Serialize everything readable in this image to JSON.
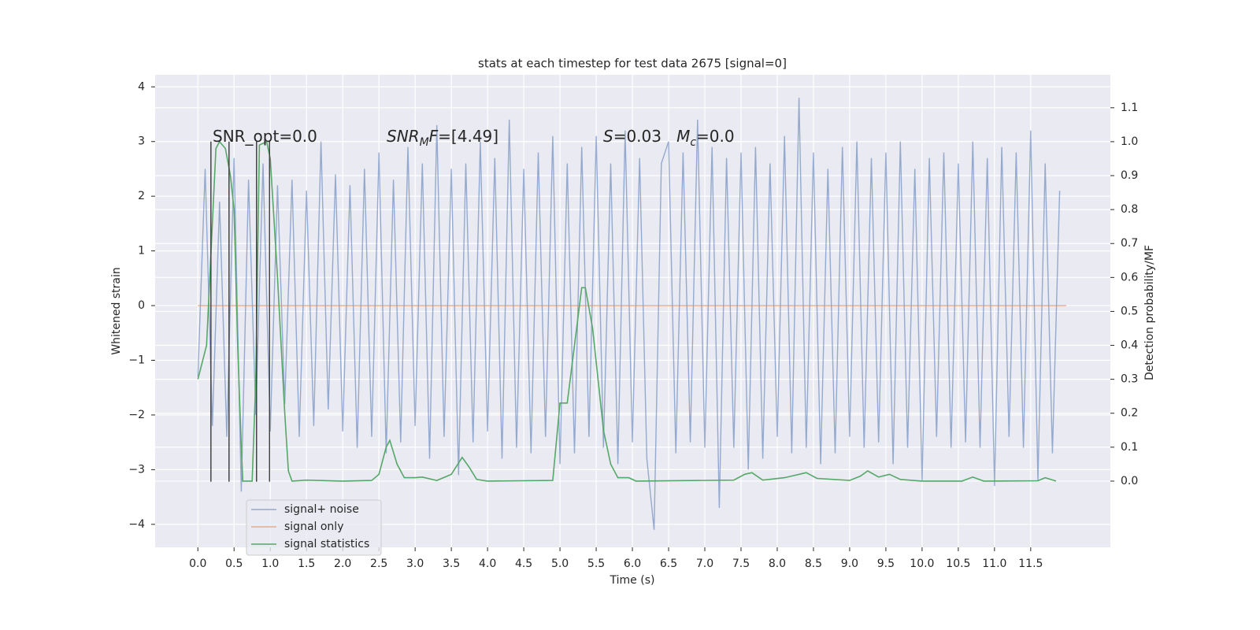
{
  "chart_data": {
    "type": "line",
    "title": "stats at each timestep for test data 2675 [signal=0]",
    "xlabel": "Time (s)",
    "ylabel": "Whitened strain",
    "y2label": "Detection probability/MF",
    "xlim": [
      -0.59,
      12.6
    ],
    "ylim": [
      -4.42,
      4.22
    ],
    "y2lim": [
      -0.195,
      1.197
    ],
    "xticks": [
      {
        "value": 0,
        "label": "0.0"
      },
      {
        "value": 0.5,
        "label": "0.5"
      },
      {
        "value": 1,
        "label": "1.0"
      },
      {
        "value": 1.5,
        "label": "1.5"
      },
      {
        "value": 2,
        "label": "2.0"
      },
      {
        "value": 2.5,
        "label": "2.5"
      },
      {
        "value": 3,
        "label": "3.0"
      },
      {
        "value": 3.5,
        "label": "3.5"
      },
      {
        "value": 4,
        "label": "4.0"
      },
      {
        "value": 4.5,
        "label": "4.5"
      },
      {
        "value": 5,
        "label": "5.0"
      },
      {
        "value": 5.5,
        "label": "5.5"
      },
      {
        "value": 6,
        "label": "6.0"
      },
      {
        "value": 6.5,
        "label": "6.5"
      },
      {
        "value": 7,
        "label": "7.0"
      },
      {
        "value": 7.5,
        "label": "7.5"
      },
      {
        "value": 8,
        "label": "8.0"
      },
      {
        "value": 8.5,
        "label": "8.5"
      },
      {
        "value": 9,
        "label": "9.0"
      },
      {
        "value": 9.5,
        "label": "9.5"
      },
      {
        "value": 10,
        "label": "10.0"
      },
      {
        "value": 10.5,
        "label": "10.5"
      },
      {
        "value": 11,
        "label": "11.0"
      },
      {
        "value": 11.5,
        "label": "11.5"
      }
    ],
    "yticks": [
      -4,
      -3,
      -2,
      -1,
      0,
      1,
      2,
      3,
      4
    ],
    "y2ticks": [
      {
        "value": 0,
        "label": "0.0"
      },
      {
        "value": 0.1,
        "label": "0.1"
      },
      {
        "value": 0.2,
        "label": "0.2"
      },
      {
        "value": 0.3,
        "label": "0.3"
      },
      {
        "value": 0.4,
        "label": "0.4"
      },
      {
        "value": 0.5,
        "label": "0.5"
      },
      {
        "value": 0.6,
        "label": "0.6"
      },
      {
        "value": 0.7,
        "label": "0.7"
      },
      {
        "value": 0.8,
        "label": "0.8"
      },
      {
        "value": 0.9,
        "label": "0.9"
      },
      {
        "value": 1,
        "label": "1.0"
      },
      {
        "value": 1.1,
        "label": "1.1"
      }
    ],
    "grid": true,
    "legend": "lower left",
    "series": [
      {
        "name": "signal+ noise",
        "color": "#4c72b0",
        "x": [
          0,
          0.1,
          0.2,
          0.3,
          0.4,
          0.5,
          0.6,
          0.7,
          0.8,
          0.9,
          1,
          1.1,
          1.2,
          1.3,
          1.4,
          1.5,
          1.6,
          1.7,
          1.8,
          1.9,
          2,
          2.1,
          2.2,
          2.3,
          2.4,
          2.5,
          2.6,
          2.7,
          2.8,
          2.9,
          3,
          3.1,
          3.2,
          3.3,
          3.4,
          3.5,
          3.6,
          3.7,
          3.8,
          3.9,
          4,
          4.1,
          4.2,
          4.3,
          4.4,
          4.5,
          4.6,
          4.7,
          4.8,
          4.9,
          5,
          5.1,
          5.2,
          5.3,
          5.4,
          5.5,
          5.6,
          5.7,
          5.8,
          5.9,
          6,
          6.1,
          6.2,
          6.3,
          6.4,
          6.5,
          6.6,
          6.7,
          6.8,
          6.9,
          7,
          7.1,
          7.2,
          7.3,
          7.4,
          7.5,
          7.6,
          7.7,
          7.8,
          7.9,
          8,
          8.1,
          8.2,
          8.3,
          8.4,
          8.5,
          8.6,
          8.7,
          8.8,
          8.9,
          9,
          9.1,
          9.2,
          9.3,
          9.4,
          9.5,
          9.6,
          9.7,
          9.8,
          9.9,
          10,
          10.1,
          10.2,
          10.3,
          10.4,
          10.5,
          10.6,
          10.7,
          10.8,
          10.9,
          11,
          11.1,
          11.2,
          11.3,
          11.4,
          11.5,
          11.6,
          11.7,
          11.8,
          11.9
        ],
        "values": [
          -1.3,
          2.5,
          -2.2,
          1.9,
          -2.4,
          2.7,
          -3.4,
          2.3,
          -2.0,
          2.6,
          -2.3,
          2.2,
          -1.8,
          2.3,
          -2.4,
          2.1,
          -2.2,
          3.0,
          -1.9,
          2.4,
          -2.3,
          2.2,
          -2.6,
          2.5,
          -2.4,
          2.8,
          -2.7,
          2.3,
          -2.5,
          2.9,
          -2.2,
          2.6,
          -2.8,
          3.3,
          -2.4,
          2.5,
          -3.1,
          2.6,
          -2.5,
          3.0,
          -2.3,
          2.7,
          -2.8,
          3.4,
          -2.6,
          2.5,
          -2.7,
          2.8,
          -2.4,
          3.1,
          -2.9,
          2.6,
          -2.7,
          2.9,
          -2.4,
          3.1,
          -2.6,
          2.6,
          -2.9,
          3.2,
          -2.5,
          2.7,
          -2.8,
          -4.1,
          2.6,
          3.0,
          -2.7,
          2.8,
          -2.5,
          3.4,
          -2.6,
          2.9,
          -3.7,
          2.7,
          -2.6,
          2.8,
          -3.0,
          2.9,
          -2.8,
          2.6,
          -2.4,
          3.1,
          -2.7,
          3.8,
          -2.6,
          2.8,
          -2.9,
          2.5,
          -2.7,
          2.9,
          -2.4,
          3.0,
          -2.6,
          2.7,
          -2.5,
          2.8,
          -2.9,
          3.0,
          -2.6,
          2.5,
          -3.2,
          2.7,
          -2.4,
          2.8,
          -2.6,
          2.6,
          -2.5,
          3.0,
          -2.6,
          2.7,
          -3.3,
          2.9,
          -2.4,
          2.8,
          -2.6,
          3.2,
          -3.2,
          2.6,
          -2.7,
          2.1
        ]
      },
      {
        "name": "signal only",
        "color": "#dd8452",
        "x": [
          0,
          11.99
        ],
        "values": [
          0,
          0
        ]
      },
      {
        "name": "signal statistics",
        "color": "#55a868",
        "axis": "y2",
        "x": [
          0,
          0.12,
          0.25,
          0.3,
          0.38,
          0.45,
          0.5,
          0.55,
          0.6,
          0.62,
          0.75,
          0.8,
          0.85,
          0.95,
          1.0,
          1.1,
          1.2,
          1.25,
          1.3,
          1.5,
          2.0,
          2.4,
          2.5,
          2.6,
          2.65,
          2.75,
          2.85,
          3.0,
          3.1,
          3.3,
          3.5,
          3.65,
          3.75,
          3.85,
          4.0,
          4.9,
          5.0,
          5.1,
          5.2,
          5.3,
          5.35,
          5.45,
          5.6,
          5.7,
          5.8,
          5.95,
          6.05,
          7.4,
          7.55,
          7.65,
          7.8,
          8.1,
          8.4,
          8.55,
          9.0,
          9.15,
          9.25,
          9.4,
          9.55,
          9.7,
          10.0,
          10.55,
          10.7,
          10.85,
          11.6,
          11.7,
          11.85
        ],
        "values": [
          0.3,
          0.4,
          0.98,
          1.0,
          0.98,
          0.9,
          0.8,
          0.4,
          0.1,
          0.0,
          0.0,
          0.3,
          0.99,
          1.0,
          0.95,
          0.6,
          0.2,
          0.03,
          0.0,
          0.003,
          0.0,
          0.002,
          0.02,
          0.1,
          0.12,
          0.05,
          0.01,
          0.01,
          0.012,
          0.002,
          0.02,
          0.07,
          0.04,
          0.005,
          0.0,
          0.002,
          0.23,
          0.23,
          0.4,
          0.57,
          0.57,
          0.45,
          0.15,
          0.05,
          0.01,
          0.01,
          0.0,
          0.003,
          0.02,
          0.025,
          0.003,
          0.01,
          0.025,
          0.008,
          0.002,
          0.015,
          0.03,
          0.012,
          0.02,
          0.005,
          0.0,
          0.0,
          0.012,
          0.0,
          0.001,
          0.01,
          0.0
        ]
      }
    ],
    "vlines": {
      "x": [
        0.18,
        0.43,
        0.81,
        0.99
      ],
      "ymin": -3.22,
      "ymax": 3.0,
      "color": "#444444"
    },
    "annotations": [
      {
        "parts": [
          {
            "text": "SNR_opt=0.0"
          }
        ]
      },
      {
        "parts": [
          {
            "text": "SNR",
            "italic": true
          },
          {
            "text": "M",
            "italic": true,
            "sub": true
          },
          {
            "text": "F",
            "italic": true
          },
          {
            "text": "=[4.49]"
          }
        ]
      },
      {
        "parts": [
          {
            "text": "S",
            "italic": true
          },
          {
            "text": "=0.03   "
          },
          {
            "text": "M",
            "italic": true
          },
          {
            "text": "c",
            "italic": true,
            "sub": true
          },
          {
            "text": "=0.0"
          }
        ]
      }
    ]
  }
}
